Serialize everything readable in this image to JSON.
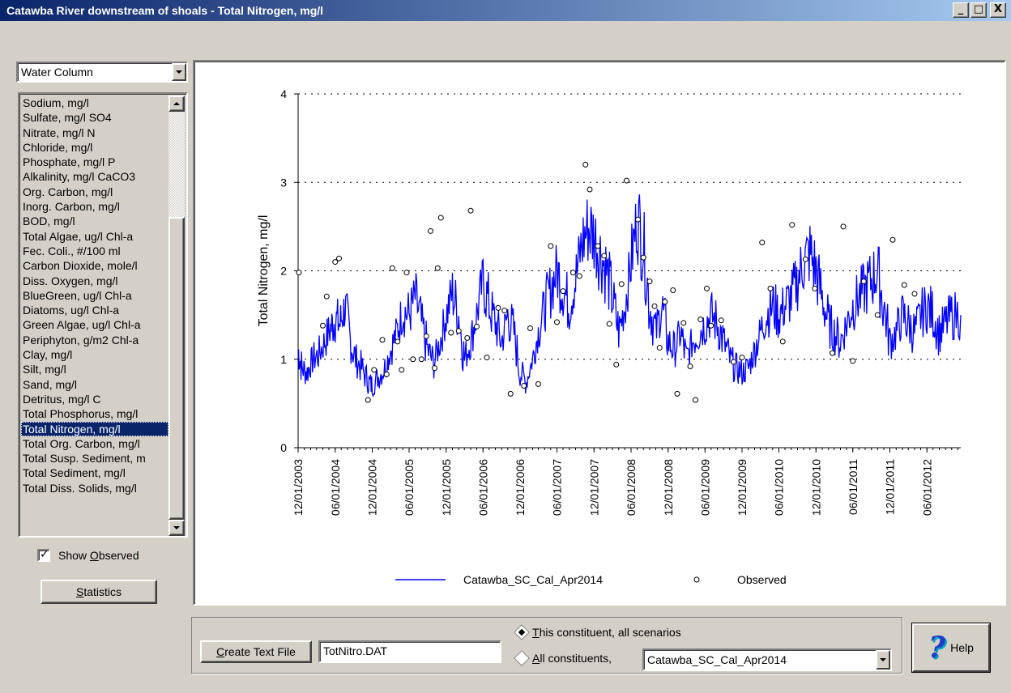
{
  "window": {
    "title": "Catawba River downstream of shoals - Total Nitrogen, mg/l",
    "buttons": {
      "minimize": "_",
      "maximize": "□",
      "close": "X"
    }
  },
  "sidebar": {
    "combo_value": "Water Column",
    "items": [
      "Sodium, mg/l",
      "Sulfate, mg/l SO4",
      "Nitrate, mg/l N",
      "Chloride, mg/l",
      "Phosphate, mg/l P",
      "Alkalinity, mg/l CaCO3",
      "Org. Carbon, mg/l",
      "Inorg. Carbon, mg/l",
      "BOD, mg/l",
      "Total Algae, ug/l Chl-a",
      "Fec. Coli., #/100 ml",
      "Carbon Dioxide, mole/l",
      "Diss. Oxygen, mg/l",
      "BlueGreen, ug/l Chl-a",
      "Diatoms, ug/l Chl-a",
      "Green Algae, ug/l Chl-a",
      "Periphyton, g/m2 Chl-a",
      "Clay, mg/l",
      "Silt, mg/l",
      "Sand, mg/l",
      "Detritus, mg/l C",
      "Total Phosphorus, mg/l",
      "Total Nitrogen, mg/l",
      "Total Org. Carbon, mg/l",
      "Total Susp. Sediment, m",
      "Total Sediment, mg/l",
      "Total Diss. Solids, mg/l"
    ],
    "selected_index": 22,
    "show_observed_label_pre": "Show ",
    "show_observed_label_u": "O",
    "show_observed_label_post": "bserved",
    "show_observed_checked": true,
    "statistics_u": "S",
    "statistics_rest": "tatistics"
  },
  "bottom": {
    "create_u": "C",
    "create_rest": "reate Text File",
    "filename": "TotNitro.DAT",
    "radio1_u": "T",
    "radio1_rest": "his constituent, all scenarios",
    "radio1_selected": true,
    "radio2_u": "A",
    "radio2_rest": "ll constituents,",
    "scenario_value": "Catawba_SC_Cal_Apr2014",
    "help_label": "Help"
  },
  "chart_data": {
    "type": "line",
    "ylabel": "Total Nitrogen, mg/l",
    "ylim": [
      0,
      4
    ],
    "yticks": [
      0,
      1,
      2,
      3,
      4
    ],
    "grid": "y-dotted",
    "xticks": [
      "12/01/2003",
      "06/01/2004",
      "12/01/2004",
      "06/01/2005",
      "12/01/2005",
      "06/01/2006",
      "12/01/2006",
      "06/01/2007",
      "12/01/2007",
      "06/01/2008",
      "12/01/2008",
      "06/01/2009",
      "12/01/2009",
      "06/01/2010",
      "12/01/2010",
      "06/01/2011",
      "12/01/2011",
      "06/01/2012"
    ],
    "xlim": [
      "2003-12-01",
      "2012-11-15"
    ],
    "legend": "bottom-center",
    "series": [
      {
        "name": "Catawba_SC_Cal_Apr2014",
        "style": "line",
        "color": "#0000ff",
        "points": [
          [
            "2003-12-01",
            1.1
          ],
          [
            "2003-12-20",
            0.9
          ],
          [
            "2004-01-15",
            0.85
          ],
          [
            "2004-02-10",
            1.0
          ],
          [
            "2004-03-10",
            1.05
          ],
          [
            "2004-04-10",
            1.2
          ],
          [
            "2004-05-10",
            1.35
          ],
          [
            "2004-06-01",
            1.45
          ],
          [
            "2004-06-25",
            1.4
          ],
          [
            "2004-07-20",
            1.6
          ],
          [
            "2004-08-15",
            1.2
          ],
          [
            "2004-09-10",
            1.0
          ],
          [
            "2004-10-10",
            0.9
          ],
          [
            "2004-11-10",
            0.75
          ],
          [
            "2004-12-01",
            0.7
          ],
          [
            "2005-01-01",
            0.8
          ],
          [
            "2005-02-01",
            0.9
          ],
          [
            "2005-03-01",
            1.1
          ],
          [
            "2005-04-01",
            1.3
          ],
          [
            "2005-05-01",
            1.55
          ],
          [
            "2005-06-01",
            1.5
          ],
          [
            "2005-07-01",
            1.7
          ],
          [
            "2005-08-01",
            1.4
          ],
          [
            "2005-09-01",
            1.1
          ],
          [
            "2005-10-01",
            0.95
          ],
          [
            "2005-11-01",
            1.2
          ],
          [
            "2005-12-01",
            1.5
          ],
          [
            "2006-01-01",
            1.75
          ],
          [
            "2006-02-01",
            1.5
          ],
          [
            "2006-03-01",
            1.0
          ],
          [
            "2006-04-01",
            1.2
          ],
          [
            "2006-05-01",
            1.5
          ],
          [
            "2006-06-01",
            1.9
          ],
          [
            "2006-07-01",
            1.6
          ],
          [
            "2006-08-01",
            1.4
          ],
          [
            "2006-09-01",
            1.2
          ],
          [
            "2006-10-01",
            1.5
          ],
          [
            "2006-11-01",
            1.3
          ],
          [
            "2006-12-01",
            0.85
          ],
          [
            "2007-01-01",
            0.75
          ],
          [
            "2007-02-01",
            1.0
          ],
          [
            "2007-03-01",
            1.3
          ],
          [
            "2007-04-01",
            1.6
          ],
          [
            "2007-05-01",
            1.8
          ],
          [
            "2007-06-01",
            2.0
          ],
          [
            "2007-07-01",
            1.8
          ],
          [
            "2007-08-01",
            1.6
          ],
          [
            "2007-09-01",
            1.9
          ],
          [
            "2007-10-01",
            2.3
          ],
          [
            "2007-11-01",
            2.5
          ],
          [
            "2007-12-01",
            2.4
          ],
          [
            "2008-01-01",
            2.2
          ],
          [
            "2008-02-01",
            2.0
          ],
          [
            "2008-03-01",
            1.7
          ],
          [
            "2008-04-01",
            1.3
          ],
          [
            "2008-05-01",
            1.6
          ],
          [
            "2008-06-01",
            2.1
          ],
          [
            "2008-07-01",
            2.6
          ],
          [
            "2008-08-01",
            2.3
          ],
          [
            "2008-09-01",
            1.6
          ],
          [
            "2008-10-01",
            1.3
          ],
          [
            "2008-11-01",
            1.6
          ],
          [
            "2008-12-01",
            1.2
          ],
          [
            "2009-01-01",
            1.1
          ],
          [
            "2009-02-01",
            1.3
          ],
          [
            "2009-03-01",
            1.0
          ],
          [
            "2009-04-01",
            1.2
          ],
          [
            "2009-05-01",
            1.3
          ],
          [
            "2009-06-01",
            1.4
          ],
          [
            "2009-07-01",
            1.5
          ],
          [
            "2009-08-01",
            1.4
          ],
          [
            "2009-09-01",
            1.2
          ],
          [
            "2009-10-01",
            1.0
          ],
          [
            "2009-11-01",
            0.9
          ],
          [
            "2009-12-01",
            0.85
          ],
          [
            "2010-01-01",
            0.9
          ],
          [
            "2010-02-01",
            1.1
          ],
          [
            "2010-03-01",
            1.3
          ],
          [
            "2010-04-01",
            1.5
          ],
          [
            "2010-05-01",
            1.6
          ],
          [
            "2010-06-01",
            1.5
          ],
          [
            "2010-07-01",
            1.6
          ],
          [
            "2010-08-01",
            1.7
          ],
          [
            "2010-09-01",
            1.9
          ],
          [
            "2010-10-01",
            2.1
          ],
          [
            "2010-11-01",
            2.2
          ],
          [
            "2010-12-01",
            2.0
          ],
          [
            "2011-01-01",
            1.7
          ],
          [
            "2011-02-01",
            1.4
          ],
          [
            "2011-03-01",
            1.3
          ],
          [
            "2011-04-01",
            1.2
          ],
          [
            "2011-05-01",
            1.4
          ],
          [
            "2011-06-01",
            1.6
          ],
          [
            "2011-07-01",
            1.7
          ],
          [
            "2011-08-01",
            1.8
          ],
          [
            "2011-09-01",
            1.9
          ],
          [
            "2011-10-01",
            2.0
          ],
          [
            "2011-11-01",
            1.6
          ],
          [
            "2011-12-01",
            1.2
          ],
          [
            "2012-01-01",
            1.3
          ],
          [
            "2012-02-01",
            1.5
          ],
          [
            "2012-03-01",
            1.4
          ],
          [
            "2012-04-01",
            1.3
          ],
          [
            "2012-05-01",
            1.5
          ],
          [
            "2012-06-01",
            1.6
          ],
          [
            "2012-07-01",
            1.5
          ],
          [
            "2012-08-01",
            1.3
          ],
          [
            "2012-09-01",
            1.4
          ],
          [
            "2012-10-01",
            1.5
          ],
          [
            "2012-11-15",
            1.5
          ]
        ]
      },
      {
        "name": "Observed",
        "style": "markers",
        "color": "#000000",
        "points": [
          [
            "2003-12-05",
            1.98
          ],
          [
            "2004-04-01",
            1.38
          ],
          [
            "2004-04-20",
            1.71
          ],
          [
            "2004-06-01",
            2.1
          ],
          [
            "2004-06-20",
            2.14
          ],
          [
            "2004-11-10",
            0.54
          ],
          [
            "2004-12-10",
            0.88
          ],
          [
            "2005-01-20",
            1.22
          ],
          [
            "2005-02-10",
            0.83
          ],
          [
            "2005-03-10",
            2.03
          ],
          [
            "2005-04-05",
            1.2
          ],
          [
            "2005-04-25",
            0.88
          ],
          [
            "2005-05-20",
            1.98
          ],
          [
            "2005-06-20",
            1.0
          ],
          [
            "2005-08-01",
            1.0
          ],
          [
            "2005-08-25",
            1.26
          ],
          [
            "2005-09-15",
            2.45
          ],
          [
            "2005-10-05",
            0.9
          ],
          [
            "2005-10-20",
            2.03
          ],
          [
            "2005-11-05",
            2.6
          ],
          [
            "2005-12-25",
            1.3
          ],
          [
            "2006-02-01",
            1.32
          ],
          [
            "2006-03-15",
            1.24
          ],
          [
            "2006-04-01",
            2.68
          ],
          [
            "2006-05-01",
            1.37
          ],
          [
            "2006-06-20",
            1.02
          ],
          [
            "2006-08-15",
            1.58
          ],
          [
            "2006-09-15",
            1.55
          ],
          [
            "2006-10-15",
            0.61
          ],
          [
            "2006-12-20",
            0.7
          ],
          [
            "2007-01-20",
            1.35
          ],
          [
            "2007-03-01",
            0.72
          ],
          [
            "2007-05-01",
            2.28
          ],
          [
            "2007-06-01",
            1.42
          ],
          [
            "2007-07-01",
            1.77
          ],
          [
            "2007-08-20",
            1.98
          ],
          [
            "2007-09-20",
            1.94
          ],
          [
            "2007-10-20",
            3.2
          ],
          [
            "2007-11-10",
            2.92
          ],
          [
            "2007-12-20",
            2.28
          ],
          [
            "2008-01-20",
            2.17
          ],
          [
            "2008-02-15",
            1.4
          ],
          [
            "2008-03-20",
            0.94
          ],
          [
            "2008-04-15",
            1.85
          ],
          [
            "2008-05-10",
            3.02
          ],
          [
            "2008-07-05",
            2.58
          ],
          [
            "2008-08-01",
            2.15
          ],
          [
            "2008-09-01",
            1.88
          ],
          [
            "2008-09-25",
            1.6
          ],
          [
            "2008-10-20",
            1.13
          ],
          [
            "2008-11-15",
            1.65
          ],
          [
            "2008-12-25",
            1.78
          ],
          [
            "2009-01-15",
            0.61
          ],
          [
            "2009-02-15",
            1.41
          ],
          [
            "2009-03-20",
            0.92
          ],
          [
            "2009-04-15",
            0.54
          ],
          [
            "2009-05-10",
            1.45
          ],
          [
            "2009-06-10",
            1.8
          ],
          [
            "2009-07-01",
            1.38
          ],
          [
            "2009-08-20",
            1.44
          ],
          [
            "2009-10-20",
            0.97
          ],
          [
            "2009-12-01",
            1.02
          ],
          [
            "2010-03-10",
            2.32
          ],
          [
            "2010-04-20",
            1.8
          ],
          [
            "2010-06-20",
            1.2
          ],
          [
            "2010-08-05",
            2.52
          ],
          [
            "2010-10-10",
            2.13
          ],
          [
            "2010-11-25",
            1.8
          ],
          [
            "2011-02-20",
            1.07
          ],
          [
            "2011-04-15",
            2.5
          ],
          [
            "2011-06-01",
            0.98
          ],
          [
            "2011-07-25",
            1.88
          ],
          [
            "2011-10-01",
            1.5
          ],
          [
            "2011-12-15",
            2.35
          ],
          [
            "2012-02-10",
            1.84
          ],
          [
            "2012-04-01",
            1.74
          ]
        ]
      }
    ]
  }
}
